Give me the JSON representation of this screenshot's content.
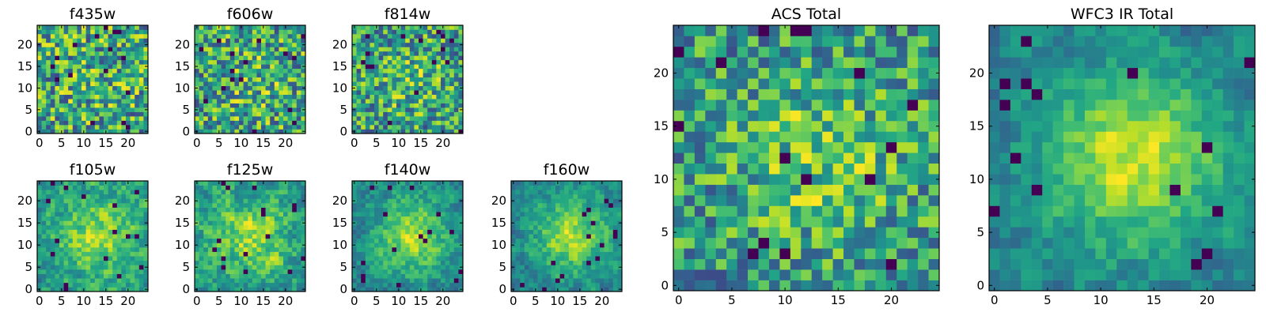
{
  "chart_data": {
    "type": "heatmap",
    "colormap": "viridis",
    "grid": false,
    "legend": "none",
    "panels": [
      {
        "title": "f435w",
        "grid_size": 25,
        "xlim": [
          0,
          24
        ],
        "ylim": [
          0,
          24
        ],
        "xticks": [
          0,
          5,
          10,
          15,
          20
        ],
        "yticks": [
          0,
          5,
          10,
          15,
          20
        ],
        "tick_labels_x": [
          "0",
          "5",
          "10",
          "15",
          "20"
        ],
        "tick_labels_y": [
          "0",
          "5",
          "10",
          "15",
          "20"
        ],
        "structure": "noise",
        "noise": 0.9,
        "center_strength": 0.05,
        "seed": 11
      },
      {
        "title": "f606w",
        "grid_size": 25,
        "xlim": [
          0,
          24
        ],
        "ylim": [
          0,
          24
        ],
        "xticks": [
          0,
          5,
          10,
          15,
          20
        ],
        "yticks": [
          0,
          5,
          10,
          15,
          20
        ],
        "tick_labels_x": [
          "0",
          "5",
          "10",
          "15",
          "20"
        ],
        "tick_labels_y": [
          "0",
          "5",
          "10",
          "15",
          "20"
        ],
        "structure": "noise",
        "noise": 0.9,
        "center_strength": 0.1,
        "seed": 23
      },
      {
        "title": "f814w",
        "grid_size": 25,
        "xlim": [
          0,
          24
        ],
        "ylim": [
          0,
          24
        ],
        "xticks": [
          0,
          5,
          10,
          15,
          20
        ],
        "yticks": [
          0,
          5,
          10,
          15,
          20
        ],
        "tick_labels_x": [
          "0",
          "5",
          "10",
          "15",
          "20"
        ],
        "tick_labels_y": [
          "0",
          "5",
          "10",
          "15",
          "20"
        ],
        "structure": "noise",
        "noise": 0.85,
        "center_strength": 0.15,
        "seed": 37
      },
      {
        "title": "f105w",
        "grid_size": 25,
        "xlim": [
          0,
          24
        ],
        "ylim": [
          0,
          24
        ],
        "xticks": [
          0,
          5,
          10,
          15,
          20
        ],
        "yticks": [
          0,
          5,
          10,
          15,
          20
        ],
        "tick_labels_x": [
          "0",
          "5",
          "10",
          "15",
          "20"
        ],
        "tick_labels_y": [
          "0",
          "5",
          "10",
          "15",
          "20"
        ],
        "structure": "smooth",
        "noise": 0.6,
        "center_strength": 0.35,
        "seed": 41
      },
      {
        "title": "f125w",
        "grid_size": 25,
        "xlim": [
          0,
          24
        ],
        "ylim": [
          0,
          24
        ],
        "xticks": [
          0,
          5,
          10,
          15,
          20
        ],
        "yticks": [
          0,
          5,
          10,
          15,
          20
        ],
        "tick_labels_x": [
          "0",
          "5",
          "10",
          "15",
          "20"
        ],
        "tick_labels_y": [
          "0",
          "5",
          "10",
          "15",
          "20"
        ],
        "structure": "smooth",
        "noise": 0.65,
        "center_strength": 0.3,
        "seed": 53
      },
      {
        "title": "f140w",
        "grid_size": 25,
        "xlim": [
          0,
          24
        ],
        "ylim": [
          0,
          24
        ],
        "xticks": [
          0,
          5,
          10,
          15,
          20
        ],
        "yticks": [
          0,
          5,
          10,
          15,
          20
        ],
        "tick_labels_x": [
          "0",
          "5",
          "10",
          "15",
          "20"
        ],
        "tick_labels_y": [
          "0",
          "5",
          "10",
          "15",
          "20"
        ],
        "structure": "smooth",
        "noise": 0.55,
        "center_strength": 0.45,
        "seed": 67
      },
      {
        "title": "f160w",
        "grid_size": 25,
        "xlim": [
          0,
          24
        ],
        "ylim": [
          0,
          24
        ],
        "xticks": [
          0,
          5,
          10,
          15,
          20
        ],
        "yticks": [
          0,
          5,
          10,
          15,
          20
        ],
        "tick_labels_x": [
          "0",
          "5",
          "10",
          "15",
          "20"
        ],
        "tick_labels_y": [
          "0",
          "5",
          "10",
          "15",
          "20"
        ],
        "structure": "smooth",
        "noise": 0.55,
        "center_strength": 0.5,
        "seed": 79
      },
      {
        "title": "ACS Total",
        "grid_size": 25,
        "xlim": [
          0,
          24
        ],
        "ylim": [
          0,
          24
        ],
        "xticks": [
          0,
          5,
          10,
          15,
          20
        ],
        "yticks": [
          0,
          5,
          10,
          15,
          20
        ],
        "tick_labels_x": [
          "0",
          "5",
          "10",
          "15",
          "20"
        ],
        "tick_labels_y": [
          "0",
          "5",
          "10",
          "15",
          "20"
        ],
        "structure": "noise",
        "noise": 0.7,
        "center_strength": 0.25,
        "seed": 97
      },
      {
        "title": "WFC3 IR Total",
        "grid_size": 25,
        "xlim": [
          0,
          24
        ],
        "ylim": [
          0,
          24
        ],
        "xticks": [
          0,
          5,
          10,
          15,
          20
        ],
        "yticks": [
          0,
          5,
          10,
          15,
          20
        ],
        "tick_labels_x": [
          "0",
          "5",
          "10",
          "15",
          "20"
        ],
        "tick_labels_y": [
          "0",
          "5",
          "10",
          "15",
          "20"
        ],
        "structure": "smooth",
        "noise": 0.5,
        "center_strength": 0.55,
        "seed": 113
      }
    ]
  }
}
